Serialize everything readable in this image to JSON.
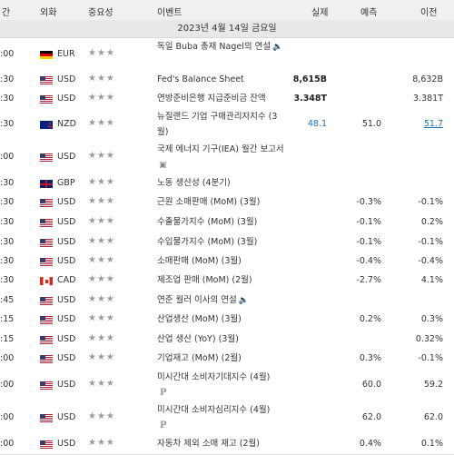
{
  "header": {
    "time": "간",
    "currency": "외화",
    "importance": "중요성",
    "event": "이벤트",
    "actual": "실제",
    "forecast": "예측",
    "previous": "이전"
  },
  "date_label": "2023년 4월 14일 금요일",
  "rows": [
    {
      "time": ":00",
      "flag": "de",
      "currency": "EUR",
      "stars": "★★★",
      "event": "독일 Buba 총재 Nagel의 연설",
      "extra_icon": "speaker-icon",
      "extra_icon_glyph": "🔈",
      "actual": "",
      "forecast": "",
      "previous": ""
    },
    {
      "time": ":30",
      "flag": "us",
      "currency": "USD",
      "stars": "★★★",
      "event": "Fed's Balance Sheet",
      "actual": "8,615B",
      "forecast": "",
      "previous": "8,632B"
    },
    {
      "time": ":30",
      "flag": "us",
      "currency": "USD",
      "stars": "★★★",
      "event": "연방준비은행 지급준비금 잔액",
      "actual": "3.348T",
      "forecast": "",
      "previous": "3.381T"
    },
    {
      "time": ":30",
      "flag": "nz",
      "currency": "NZD",
      "stars": "★★★",
      "event": "뉴질랜드 기업 구매관리자지수 (3월)",
      "actual": "48.1",
      "forecast": "51.0",
      "previous": "51.7"
    },
    {
      "time": ":00",
      "flag": "us",
      "currency": "USD",
      "stars": "★★★",
      "event": "국제 에너지 기구(IEA) 월간 보고서",
      "extra_icon": "report-icon",
      "extra_icon_glyph": "▣",
      "actual": "",
      "forecast": "",
      "previous": ""
    },
    {
      "time": ":30",
      "flag": "gb",
      "currency": "GBP",
      "stars": "★★★",
      "event": "노동 생산성 (4분기)",
      "actual": "",
      "forecast": "",
      "previous": ""
    },
    {
      "time": ":30",
      "flag": "us",
      "currency": "USD",
      "stars": "★★★",
      "event": "근원 소매판매 (MoM) (3월)",
      "actual": "",
      "forecast": "-0.3%",
      "previous": "-0.1%"
    },
    {
      "time": ":30",
      "flag": "us",
      "currency": "USD",
      "stars": "★★★",
      "event": "수출물가지수 (MoM) (3월)",
      "actual": "",
      "forecast": "-0.1%",
      "previous": "0.2%"
    },
    {
      "time": ":30",
      "flag": "us",
      "currency": "USD",
      "stars": "★★★",
      "event": "수입물가지수 (MoM) (3월)",
      "actual": "",
      "forecast": "-0.1%",
      "previous": "-0.1%"
    },
    {
      "time": ":30",
      "flag": "us",
      "currency": "USD",
      "stars": "★★★",
      "event": "소매판매 (MoM) (3월)",
      "actual": "",
      "forecast": "-0.4%",
      "previous": "-0.4%"
    },
    {
      "time": ":30",
      "flag": "ca",
      "currency": "CAD",
      "stars": "★★★",
      "event": "제조업 판매 (MoM) (2월)",
      "actual": "",
      "forecast": "-2.7%",
      "previous": "4.1%"
    },
    {
      "time": ":45",
      "flag": "us",
      "currency": "USD",
      "stars": "★★★",
      "event": "연준 월러 이사의 연설",
      "extra_icon": "speaker-icon",
      "extra_icon_glyph": "🔈",
      "actual": "",
      "forecast": "",
      "previous": ""
    },
    {
      "time": ":15",
      "flag": "us",
      "currency": "USD",
      "stars": "★★★",
      "event": "산업생산 (MoM) (3월)",
      "actual": "",
      "forecast": "0.2%",
      "previous": "0.3%"
    },
    {
      "time": ":15",
      "flag": "us",
      "currency": "USD",
      "stars": "★★★",
      "event": "산업 생산 (YoY) (3월)",
      "actual": "",
      "forecast": "",
      "previous": "0.32%"
    },
    {
      "time": ":00",
      "flag": "us",
      "currency": "USD",
      "stars": "★★★",
      "event": "기업재고 (MoM) (2월)",
      "actual": "",
      "forecast": "0.3%",
      "previous": "-0.1%"
    },
    {
      "time": ":00",
      "flag": "us",
      "currency": "USD",
      "stars": "★★★",
      "event": "미시간대 소비자기대지수 (4월)",
      "extra_icon": "preliminary-icon",
      "extra_icon_glyph": "P",
      "actual": "",
      "forecast": "60.0",
      "previous": "59.2"
    },
    {
      "time": ":00",
      "flag": "us",
      "currency": "USD",
      "stars": "★★★",
      "event": "미시간대 소비자심리지수 (4월)",
      "extra_icon": "preliminary-icon",
      "extra_icon_glyph": "P",
      "actual": "",
      "forecast": "62.0",
      "previous": "62.0"
    },
    {
      "time": ":00",
      "flag": "us",
      "currency": "USD",
      "stars": "★★★",
      "event": "자동차 제외 소매 재고 (2월)",
      "actual": "",
      "forecast": "0.4%",
      "previous": "0.1%"
    }
  ],
  "colors": {
    "actual_below": "#1a73c9",
    "header_bg": "#eef0f2",
    "date_bg": "#e6e8ea"
  }
}
